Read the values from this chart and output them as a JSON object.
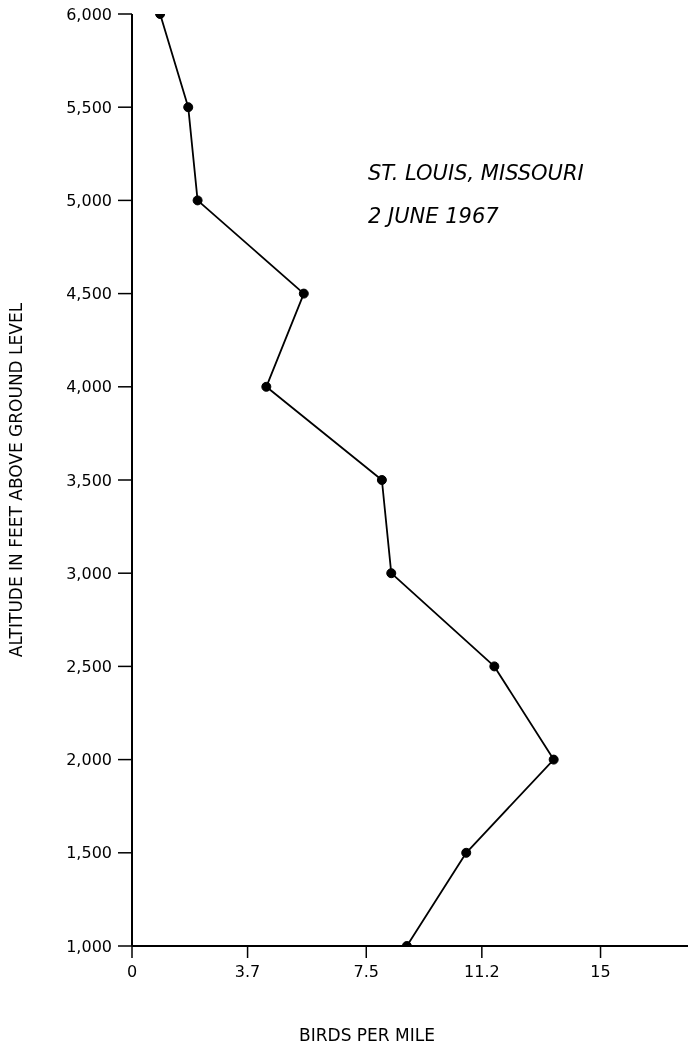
{
  "chart_data": {
    "type": "line",
    "xlabel": "BIRDS PER MILE",
    "ylabel": "ALTITUDE IN FEET ABOVE GROUND LEVEL",
    "annotations": [
      "ST. LOUIS, MISSOURI",
      "2 JUNE 1967"
    ],
    "x": [
      0.9,
      1.8,
      2.1,
      5.5,
      4.3,
      8.0,
      8.3,
      11.6,
      13.5,
      10.7,
      8.8
    ],
    "values": [
      6000,
      5500,
      5000,
      4500,
      4000,
      3500,
      3000,
      2500,
      2000,
      1500,
      1000
    ],
    "color": "#000000",
    "marker": "circle",
    "line_style": "solid",
    "xlim": [
      0,
      17.8
    ],
    "xticks": [
      0,
      3.7,
      7.5,
      11.2,
      15
    ],
    "ylim": [
      1000,
      6000
    ],
    "yticks": [
      {
        "value": 1000,
        "label": "1,000"
      },
      {
        "value": 1500,
        "label": "1,500"
      },
      {
        "value": 2000,
        "label": "2,000"
      },
      {
        "value": 2500,
        "label": "2,500"
      },
      {
        "value": 3000,
        "label": "3,000"
      },
      {
        "value": 3500,
        "label": "3,500"
      },
      {
        "value": 4000,
        "label": "4,000"
      },
      {
        "value": 4500,
        "label": "4,500"
      },
      {
        "value": 5000,
        "label": "5,000"
      },
      {
        "value": 5500,
        "label": "5,500"
      },
      {
        "value": 6000,
        "label": "6,000"
      }
    ]
  }
}
